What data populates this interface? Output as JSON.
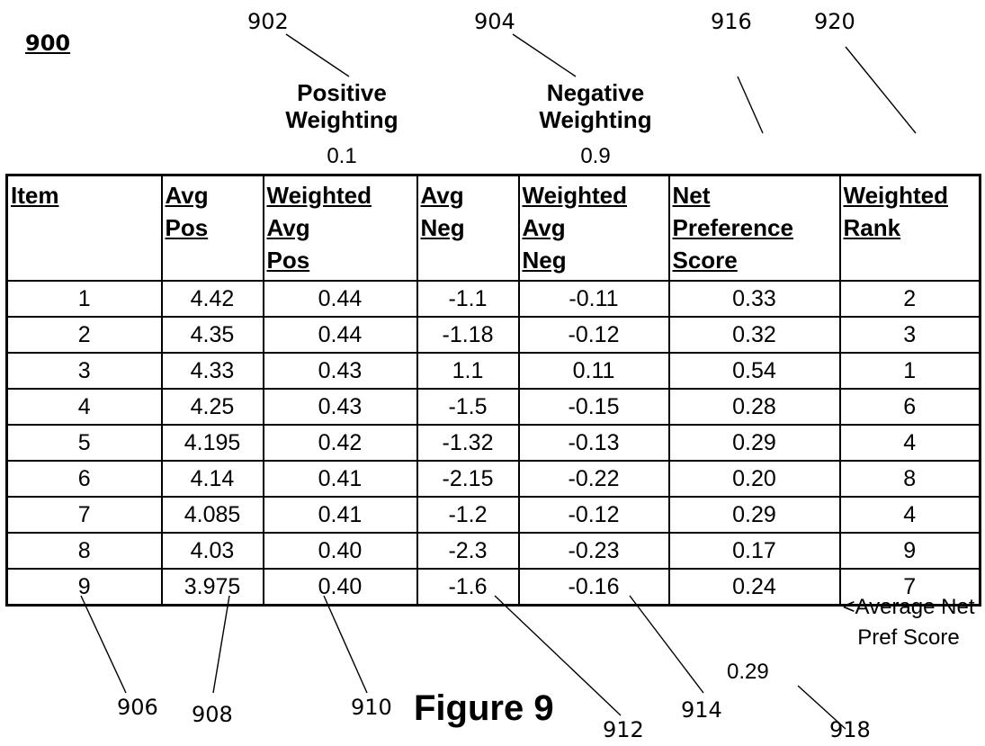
{
  "figure": {
    "label": "900",
    "caption": "Figure 9"
  },
  "reference_numerals": {
    "positive_weighting": "902",
    "negative_weighting": "904",
    "net_preference_column": "916",
    "weighted_rank_column": "920",
    "item_column": "906",
    "avg_pos_column": "908",
    "weighted_avg_pos_column": "910",
    "avg_neg_column": "912",
    "weighted_avg_neg_column": "914",
    "average_net_pref_score": "918"
  },
  "weightings": {
    "positive": {
      "title": "Positive Weighting",
      "value": "0.1"
    },
    "negative": {
      "title": "Negative Weighting",
      "value": "0.9"
    }
  },
  "table": {
    "columns": [
      "Item",
      "Avg Pos",
      "Weighted Avg Pos",
      "Avg Neg",
      "Weighted Avg Neg",
      "Net Preference Score",
      "Weighted Rank"
    ],
    "rows": [
      [
        "1",
        "4.42",
        "0.44",
        "-1.1",
        "-0.11",
        "0.33",
        "2"
      ],
      [
        "2",
        "4.35",
        "0.44",
        "-1.18",
        "-0.12",
        "0.32",
        "3"
      ],
      [
        "3",
        "4.33",
        "0.43",
        "1.1",
        "0.11",
        "0.54",
        "1"
      ],
      [
        "4",
        "4.25",
        "0.43",
        "-1.5",
        "-0.15",
        "0.28",
        "6"
      ],
      [
        "5",
        "4.195",
        "0.42",
        "-1.32",
        "-0.13",
        "0.29",
        "4"
      ],
      [
        "6",
        "4.14",
        "0.41",
        "-2.15",
        "-0.22",
        "0.20",
        "8"
      ],
      [
        "7",
        "4.085",
        "0.41",
        "-1.2",
        "-0.12",
        "0.29",
        "4"
      ],
      [
        "8",
        "4.03",
        "0.40",
        "-2.3",
        "-0.23",
        "0.17",
        "9"
      ],
      [
        "9",
        "3.975",
        "0.40",
        "-1.6",
        "-0.16",
        "0.24",
        "7"
      ]
    ]
  },
  "average_net_pref": {
    "label": "<Average Net Pref Score",
    "value": "0.29"
  }
}
